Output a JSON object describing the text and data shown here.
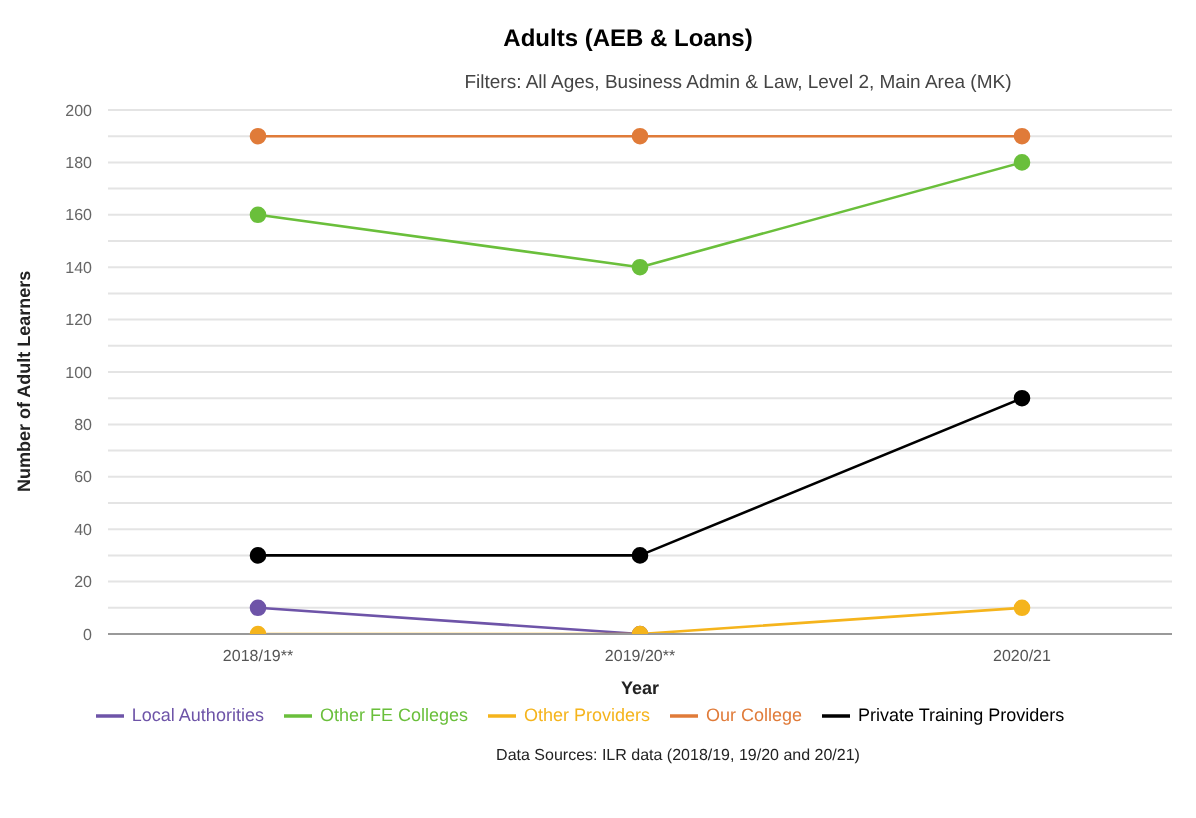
{
  "chart_data": {
    "type": "line",
    "title": "Adults (AEB & Loans)",
    "subtitle": "Filters: All Ages, Business Admin & Law, Level 2, Main Area (MK)",
    "xlabel": "Year",
    "ylabel": "Number of Adult Learners",
    "categories": [
      "2018/19**",
      "2019/20**",
      "2020/21"
    ],
    "series": [
      {
        "name": "Our College",
        "color": "#e07b39",
        "values": [
          190,
          190,
          190
        ]
      },
      {
        "name": "Other FE Colleges",
        "color": "#6abf3b",
        "values": [
          160,
          140,
          180
        ]
      },
      {
        "name": "Private Training Providers",
        "color": "#000000",
        "values": [
          30,
          30,
          90
        ]
      },
      {
        "name": "Local Authorities",
        "color": "#6e54a8",
        "values": [
          10,
          0,
          null
        ]
      },
      {
        "name": "Other Providers",
        "color": "#f5b41c",
        "values": [
          0,
          0,
          10
        ]
      }
    ],
    "ylim": [
      0,
      200
    ],
    "yticks": [
      0,
      {
        "value": 10,
        "label": null
      },
      20,
      {
        "value": 30,
        "label": null
      },
      40,
      {
        "value": 50,
        "label": null
      },
      60,
      {
        "value": 70,
        "label": null
      },
      80,
      {
        "value": 90,
        "label": null
      },
      100,
      {
        "value": 110,
        "label": null
      },
      120,
      {
        "value": 130,
        "label": null
      },
      140,
      {
        "value": 150,
        "label": null
      },
      160,
      {
        "value": 170,
        "label": null
      },
      180,
      {
        "value": 190,
        "label": null
      },
      200
    ],
    "grid": "y",
    "legend": "bottom",
    "marker": "circle",
    "line_style": "solid",
    "annotations": [
      "Data Sources: ILR data (2018/19, 19/20 and 20/21)"
    ]
  }
}
